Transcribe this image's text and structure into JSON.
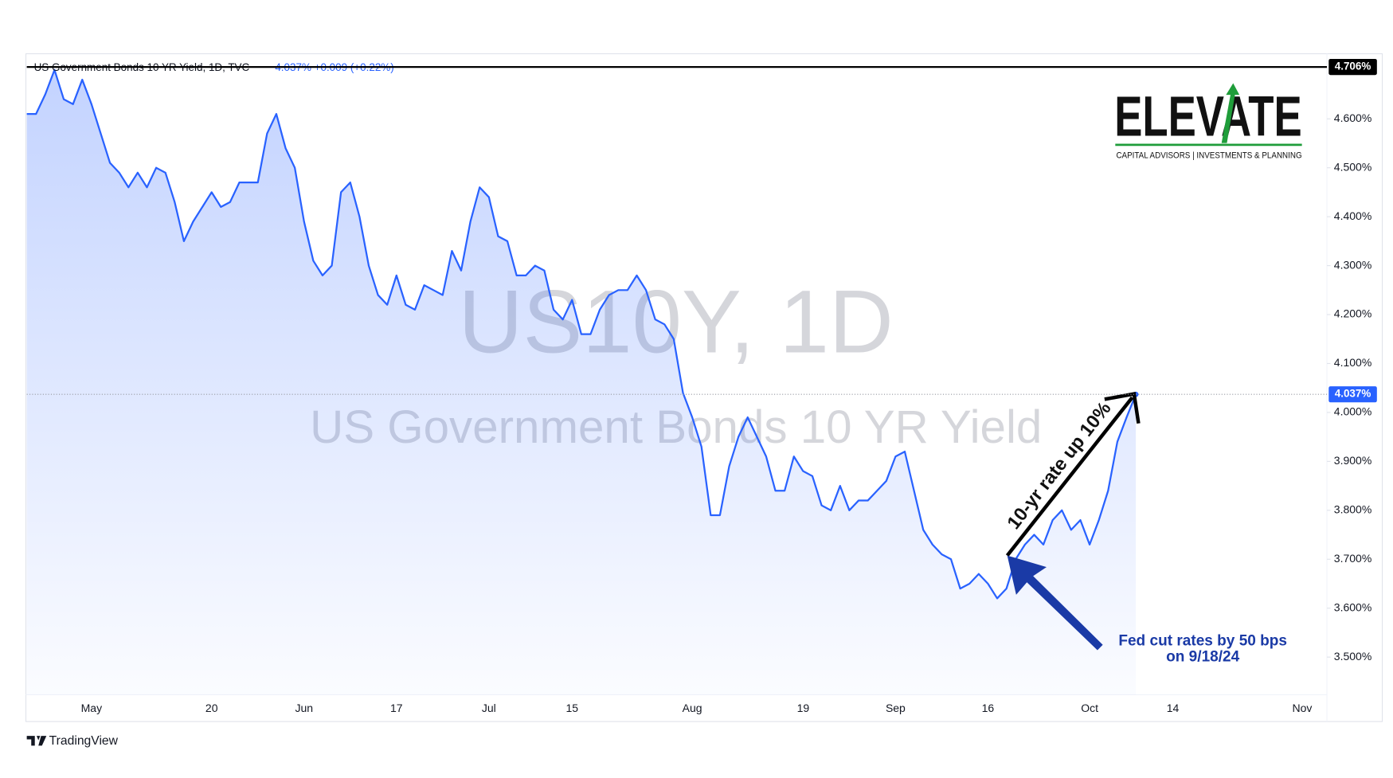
{
  "chart_data": {
    "type": "area",
    "title": "US Government Bonds 10 YR Yield, 1D, TVC",
    "quote": "4.037% +0.009 (+0.22%)",
    "watermark": [
      "US10Y, 1D",
      "US Government Bonds 10 YR Yield"
    ],
    "logo": {
      "name": "ELEVATE",
      "tagline": "CAPITAL ADVISORS | INVESTMENTS & PLANNING"
    },
    "annotations": [
      "10-yr rate up 10%",
      "Fed cut rates by 50 bps",
      "on 9/18/24"
    ],
    "footer": "TradingView",
    "color": "#2962ff",
    "grid": false,
    "categories": [
      null,
      null,
      null,
      null,
      null,
      null,
      null,
      "May",
      null,
      null,
      null,
      null,
      null,
      null,
      null,
      null,
      null,
      null,
      null,
      null,
      "20",
      null,
      null,
      null,
      null,
      null,
      null,
      null,
      null,
      null,
      "Jun",
      null,
      null,
      null,
      null,
      null,
      null,
      null,
      null,
      null,
      "17",
      null,
      null,
      null,
      null,
      null,
      null,
      null,
      null,
      null,
      "Jul",
      null,
      null,
      null,
      null,
      null,
      null,
      null,
      null,
      "15",
      null,
      null,
      null,
      null,
      null,
      null,
      null,
      null,
      null,
      null,
      null,
      null,
      "Aug",
      null,
      null,
      null,
      null,
      null,
      null,
      null,
      null,
      null,
      null,
      null,
      "19",
      null,
      null,
      null,
      null,
      null,
      null,
      null,
      null,
      null,
      "Sep",
      null,
      null,
      null,
      null,
      null,
      null,
      null,
      null,
      null,
      "16",
      null,
      null,
      null,
      null,
      null,
      null,
      null,
      null,
      null,
      null,
      "Oct",
      null,
      null,
      null,
      null,
      null,
      null,
      null,
      null,
      "14",
      null,
      null,
      null,
      null,
      null,
      null,
      null,
      null,
      null,
      null,
      null,
      null,
      null,
      "Nov"
    ],
    "values": [
      4.61,
      4.61,
      4.65,
      4.7,
      4.64,
      4.63,
      4.68,
      4.63,
      4.57,
      4.51,
      4.49,
      4.46,
      4.49,
      4.46,
      4.5,
      4.49,
      4.43,
      4.35,
      4.39,
      4.42,
      4.45,
      4.42,
      4.43,
      4.47,
      4.47,
      4.47,
      4.57,
      4.61,
      4.54,
      4.5,
      4.39,
      4.31,
      4.28,
      4.3,
      4.45,
      4.47,
      4.4,
      4.3,
      4.24,
      4.22,
      4.28,
      4.22,
      4.21,
      4.26,
      4.25,
      4.24,
      4.33,
      4.29,
      4.39,
      4.46,
      4.44,
      4.36,
      4.35,
      4.28,
      4.28,
      4.3,
      4.29,
      4.21,
      4.19,
      4.23,
      4.16,
      4.16,
      4.21,
      4.24,
      4.25,
      4.25,
      4.28,
      4.25,
      4.19,
      4.18,
      4.15,
      4.04,
      3.99,
      3.93,
      3.79,
      3.79,
      3.89,
      3.95,
      3.99,
      3.95,
      3.91,
      3.84,
      3.84,
      3.91,
      3.88,
      3.87,
      3.81,
      3.8,
      3.85,
      3.8,
      3.82,
      3.82,
      3.84,
      3.86,
      3.91,
      3.92,
      3.84,
      3.76,
      3.73,
      3.71,
      3.7,
      3.64,
      3.65,
      3.67,
      3.65,
      3.62,
      3.64,
      3.7,
      3.73,
      3.75,
      3.73,
      3.78,
      3.8,
      3.76,
      3.78,
      3.73,
      3.78,
      3.84,
      3.94,
      3.99,
      4.037,
      null,
      null,
      null,
      null,
      null,
      null,
      null,
      null,
      null,
      null,
      null,
      null,
      null,
      null,
      null,
      null,
      null,
      null
    ],
    "ylim": [
      3.423,
      4.733
    ],
    "yticks": [
      {
        "value": 3.5,
        "label": "3.500%"
      },
      {
        "value": 3.6,
        "label": "3.600%"
      },
      {
        "value": 3.7,
        "label": "3.700%"
      },
      {
        "value": 3.8,
        "label": "3.800%"
      },
      {
        "value": 3.9,
        "label": "3.900%"
      },
      {
        "value": 4.0,
        "label": "4.000%"
      },
      {
        "value": 4.1,
        "label": "4.100%"
      },
      {
        "value": 4.2,
        "label": "4.200%"
      },
      {
        "value": 4.3,
        "label": "4.300%"
      },
      {
        "value": 4.4,
        "label": "4.400%"
      },
      {
        "value": 4.5,
        "label": "4.500%"
      },
      {
        "value": 4.6,
        "label": "4.600%"
      }
    ],
    "high_line": {
      "value": 4.706,
      "label": "4.706%"
    },
    "last_label": {
      "value": 4.037,
      "label": "4.037%"
    }
  }
}
